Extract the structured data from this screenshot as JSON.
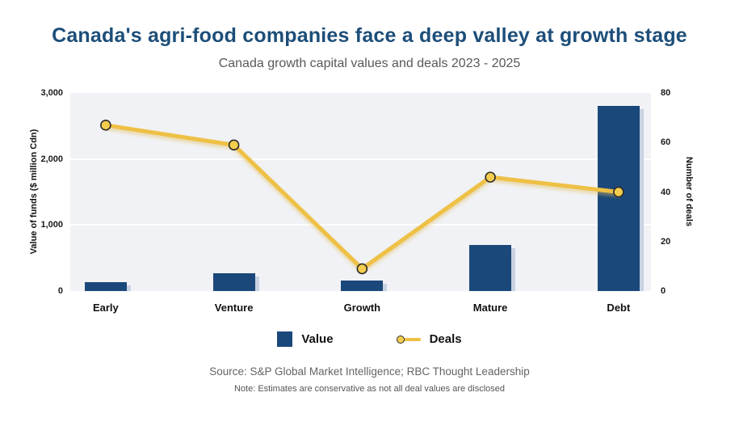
{
  "chart_data": {
    "type": "combo",
    "title": "Canada's agri-food companies face a deep valley at growth stage",
    "subtitle": "Canada growth capital values and deals 2023 - 2025",
    "categories": [
      "Early",
      "Venture",
      "Growth",
      "Mature",
      "Debt"
    ],
    "series": [
      {
        "name": "Value",
        "type": "bar",
        "axis": "left",
        "values": [
          140,
          270,
          160,
          700,
          2800
        ]
      },
      {
        "name": "Deals",
        "type": "line",
        "axis": "right",
        "values": [
          67,
          59,
          9,
          46,
          40
        ]
      }
    ],
    "left_axis": {
      "label": "Value of funds ($ million Cdn)",
      "min": 0,
      "max": 3000,
      "tick_values": [
        0,
        1000,
        2000,
        3000
      ],
      "tick_labels": [
        "0",
        "1,000",
        "2,000",
        "3,000"
      ]
    },
    "right_axis": {
      "label": "Number of deals",
      "min": 0,
      "max": 80,
      "tick_values": [
        0,
        20,
        40,
        60,
        80
      ],
      "tick_labels": [
        "0",
        "20",
        "40",
        "60",
        "80"
      ]
    },
    "grid": "horizontal white lines at left-axis 1,000 and 2,000",
    "legend_position": "bottom"
  },
  "legend": {
    "items": [
      {
        "label": "Value",
        "swatch": "bar-square"
      },
      {
        "label": "Deals",
        "swatch": "line-dot"
      }
    ]
  },
  "footer": {
    "source": "Source: S&P Global Market Intelligence; RBC Thought Leadership",
    "note": "Note: Estimates are conservative as not all deal values are disclosed"
  },
  "colors": {
    "title": "#1d4e79",
    "subtitle": "#58595b",
    "bar": "#1b487a",
    "bar_shadow": "#c9d2e3",
    "line": "#eec045",
    "marker_fill": "#f5cd4e",
    "marker_stroke": "#2b2b2b",
    "plot_bg": "#f1f2f5",
    "grid": "#ffffff",
    "tick_text": "#1a1a1a",
    "footer_text": "#636466"
  }
}
